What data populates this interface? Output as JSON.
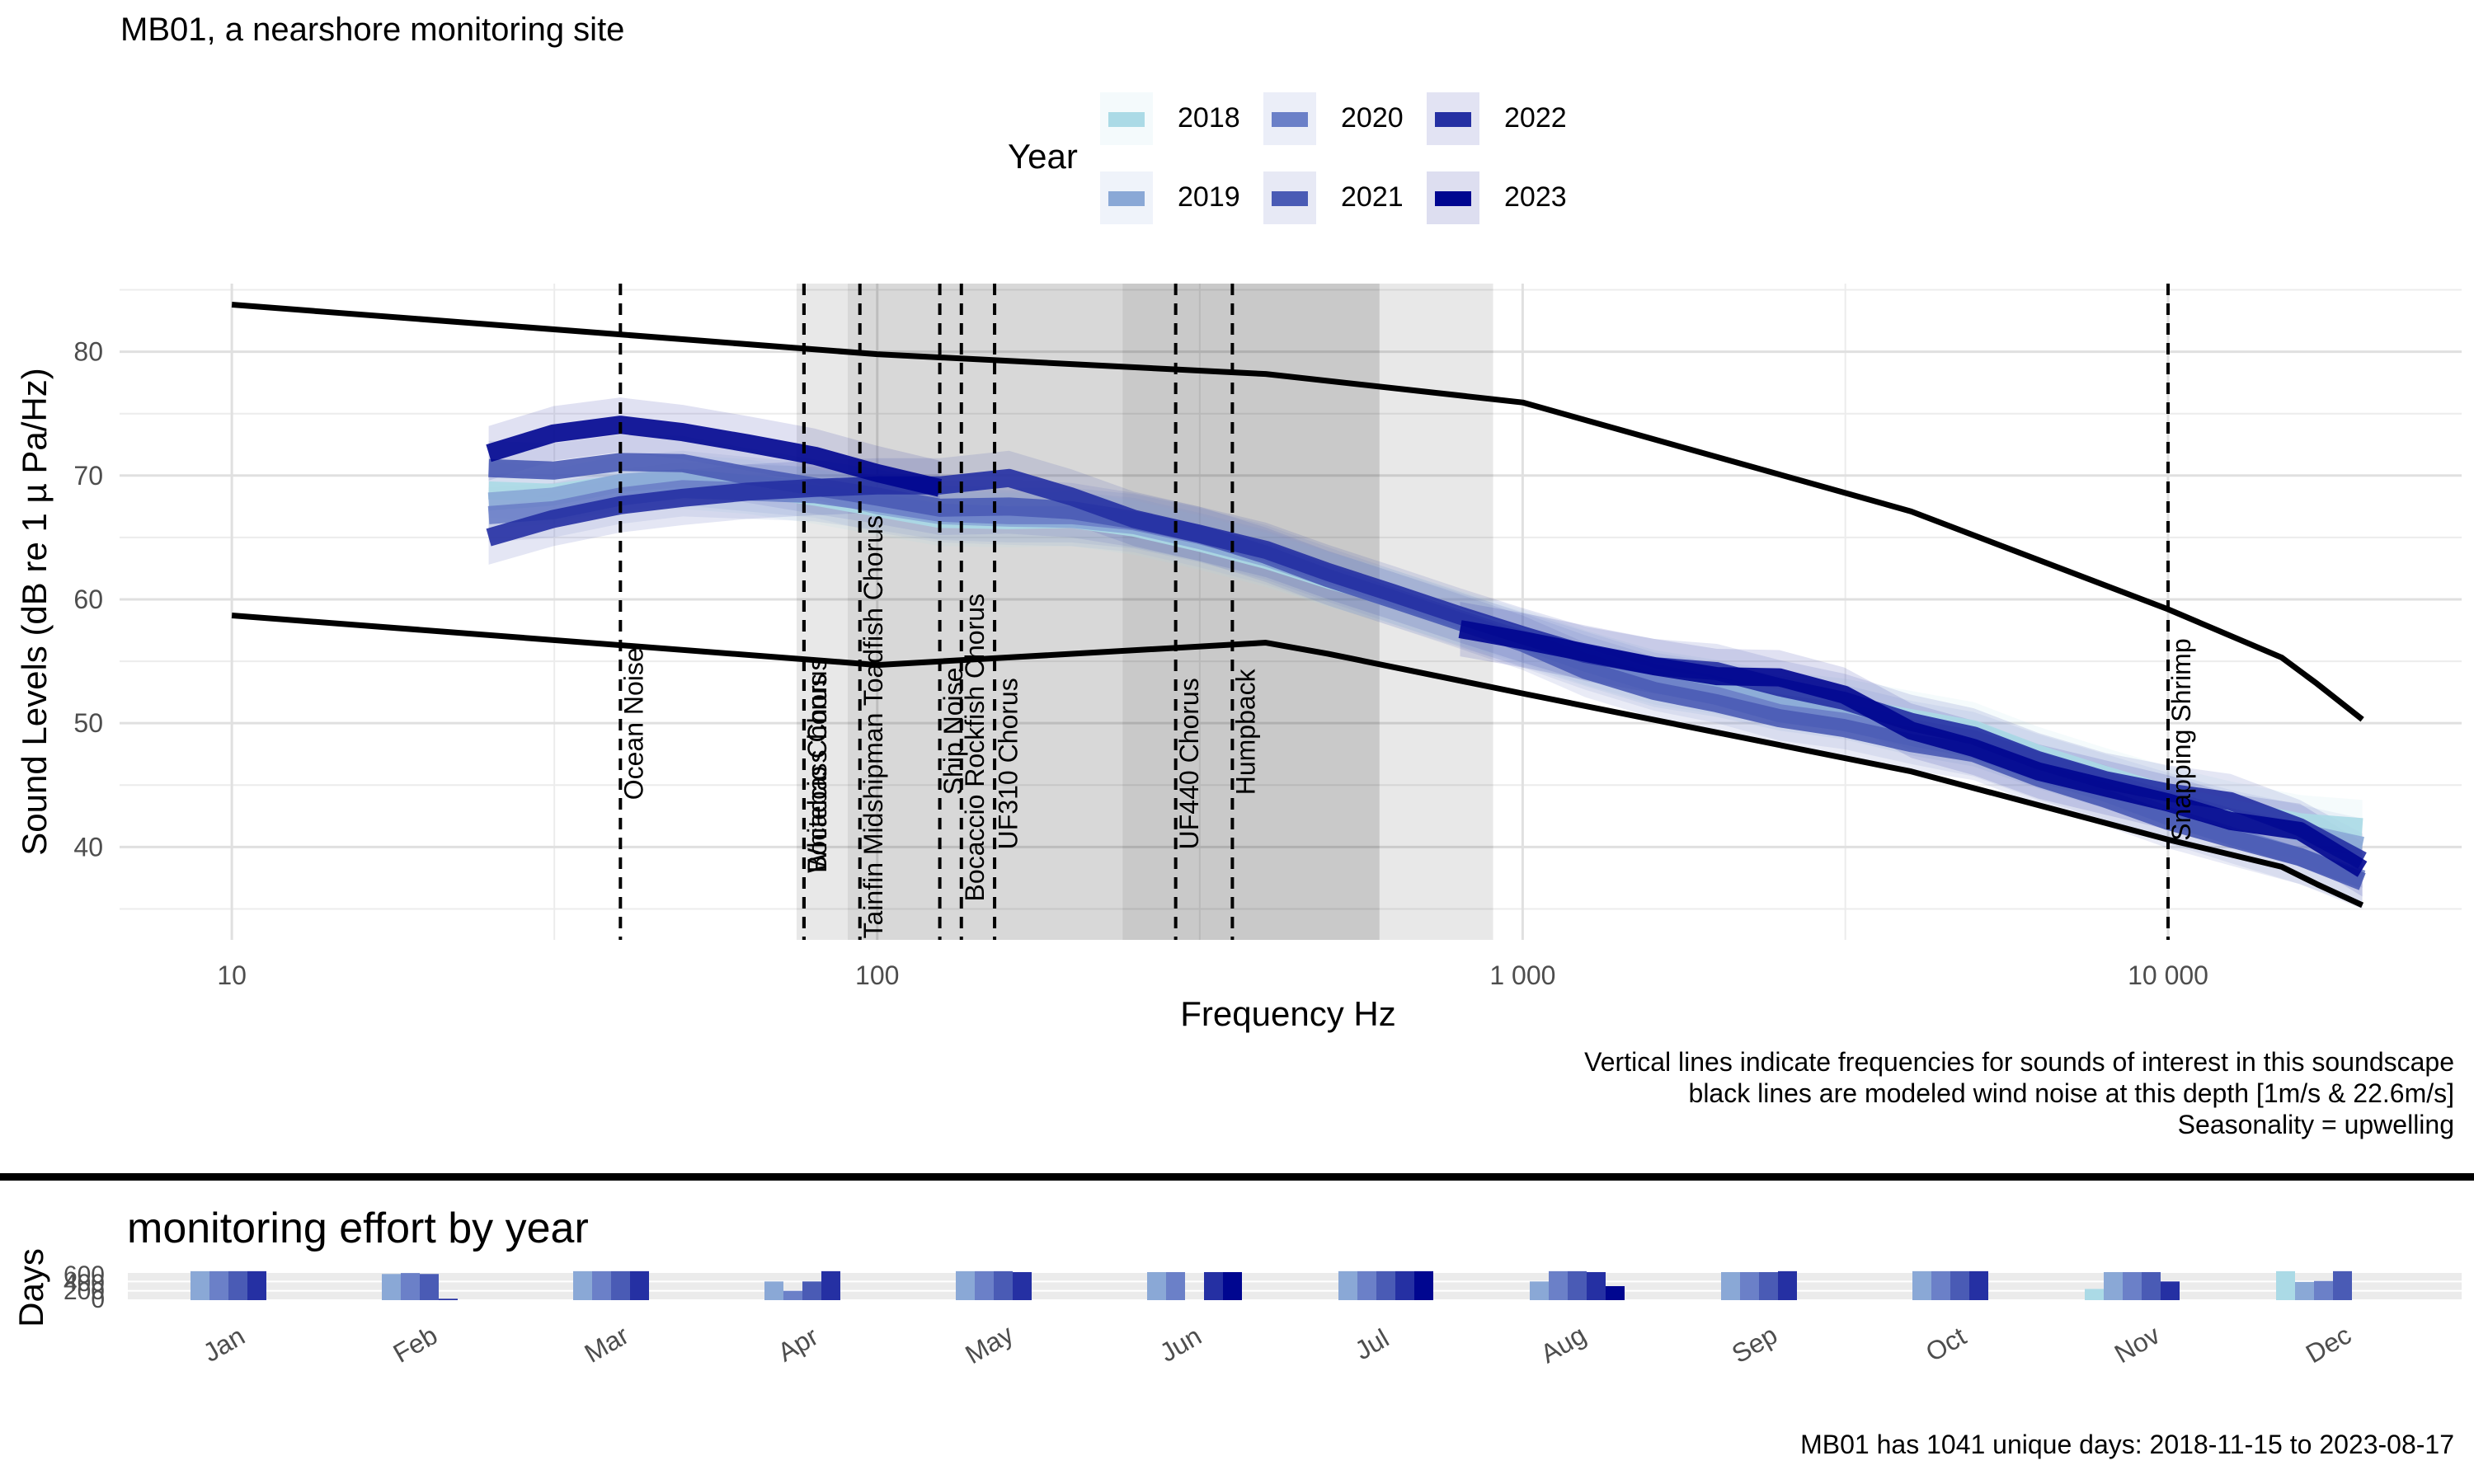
{
  "page_title": "MB01, a nearshore monitoring site",
  "legend": {
    "title": "Year",
    "items": [
      {
        "label": "2018",
        "color": "#abdae6"
      },
      {
        "label": "2019",
        "color": "#8aa8d6"
      },
      {
        "label": "2020",
        "color": "#6b80c8"
      },
      {
        "label": "2021",
        "color": "#4a5bb5"
      },
      {
        "label": "2022",
        "color": "#2530a3"
      },
      {
        "label": "2023",
        "color": "#000690"
      }
    ]
  },
  "notes": [
    "Vertical lines indicate frequencies for sounds of interest in this soundscape",
    "black lines are modeled wind noise at this depth [1m/s & 22.6m/s]",
    "Seasonality = upwelling"
  ],
  "effort_title": "monitoring effort by year",
  "footer": "MB01 has 1041 unique days: 2018-11-15 to 2023-08-17",
  "chart_data": [
    {
      "type": "line",
      "xlabel": "Frequency Hz",
      "ylabel": "Sound Levels (dB re 1 µ Pa/Hz)",
      "x_scale": "log",
      "xlim": [
        6.7,
        28500
      ],
      "ylim": [
        32.5,
        85.5
      ],
      "x_ticks": [
        10,
        100,
        1000,
        10000
      ],
      "x_tick_labels": [
        "10",
        "100",
        "1 000",
        "10 000"
      ],
      "y_ticks": [
        40,
        50,
        60,
        70,
        80
      ],
      "y_tick_labels": [
        "40",
        "50",
        "60",
        "70",
        "80"
      ],
      "grid": true,
      "legend_position": "top",
      "shaded_bands": [
        {
          "from": 75,
          "to": 900,
          "shade": "light"
        },
        {
          "from": 90,
          "to": 600,
          "shade": "medium"
        },
        {
          "from": 240,
          "to": 600,
          "shade": "medium"
        }
      ],
      "reference_lines": [
        {
          "label": "Ocean Noise",
          "x": 40,
          "label_y": 43.8
        },
        {
          "label": "Whitebass Chorus",
          "x": 77,
          "label_y": 37.9
        },
        {
          "label": "Bocaccio Chorus",
          "x": 77,
          "label_y": 37.9
        },
        {
          "label": "Tainfin Midshipman Toadfish Chorus",
          "x": 94,
          "label_y": 32.6
        },
        {
          "label": "Ship Noise",
          "x": 125,
          "label_y": 44.2
        },
        {
          "label": "Bocaccio Rockfish Chorus",
          "x": 135,
          "label_y": 35.6
        },
        {
          "label": "UF310 Chorus",
          "x": 152,
          "label_y": 39.8
        },
        {
          "label": "UF440 Chorus",
          "x": 290,
          "label_y": 39.8
        },
        {
          "label": "Humpback",
          "x": 355,
          "label_y": 44.2
        },
        {
          "label": "Snapping Shrimp",
          "x": 10000,
          "label_y": 40.5
        }
      ],
      "wind_noise": [
        {
          "name": "22.6m/s",
          "x": [
            10,
            100,
            400,
            1000,
            4000,
            10000,
            15000,
            17000,
            20000
          ],
          "y": [
            83.8,
            79.8,
            78.2,
            75.9,
            67.1,
            59.2,
            55.3,
            53.2,
            50.3
          ]
        },
        {
          "name": "1m/s",
          "x": [
            10,
            80,
            100,
            400,
            500,
            1000,
            4000,
            10000,
            15000,
            17000,
            20000
          ],
          "y": [
            58.7,
            55.1,
            54.7,
            56.5,
            55.6,
            52.4,
            46.1,
            40.6,
            38.4,
            37.0,
            35.3
          ]
        }
      ],
      "x": [
        25,
        31.5,
        40,
        50,
        63,
        80,
        100,
        125,
        160,
        200,
        250,
        315,
        400,
        500,
        630,
        800,
        1000,
        1250,
        1600,
        2000,
        2500,
        3150,
        4000,
        5000,
        6300,
        8000,
        10000,
        12500,
        16000,
        20000
      ],
      "series": [
        {
          "name": "2018",
          "values": [
            68.8,
            68.6,
            69.3,
            69.5,
            69.1,
            68.3,
            67.4,
            66.5,
            66.4,
            66.5,
            65.8,
            64.6,
            63.2,
            61.6,
            60.2,
            58.5,
            57.0,
            55.3,
            53.7,
            52.9,
            52.0,
            51.4,
            50.4,
            49.5,
            47.5,
            45.8,
            44.3,
            43.1,
            42.0,
            41.6
          ]
        },
        {
          "name": "2019",
          "values": [
            67.9,
            68.3,
            69.4,
            69.8,
            69.3,
            68.8,
            67.6,
            66.8,
            66.6,
            66.5,
            66.0,
            64.8,
            63.4,
            61.7,
            60.0,
            58.3,
            56.8,
            55.2,
            53.5,
            52.7,
            51.6,
            50.9,
            49.6,
            48.7,
            46.9,
            45.3,
            43.8,
            42.4,
            41.2,
            40.1
          ]
        },
        {
          "name": "2020",
          "values": [
            66.8,
            67.2,
            68.3,
            68.9,
            68.7,
            68.5,
            67.8,
            67.0,
            66.8,
            66.8,
            66.3,
            65.2,
            63.8,
            62.0,
            60.2,
            58.4,
            56.7,
            54.9,
            53.2,
            52.2,
            50.8,
            50.1,
            48.9,
            47.9,
            46.0,
            44.4,
            42.5,
            40.9,
            39.2,
            37.4
          ]
        },
        {
          "name": "2021",
          "values": [
            70.6,
            70.4,
            71.1,
            71.0,
            70.0,
            69.1,
            68.3,
            67.4,
            67.5,
            67.2,
            66.4,
            65.3,
            63.6,
            61.7,
            60.0,
            58.2,
            56.5,
            54.3,
            52.6,
            51.6,
            50.4,
            49.6,
            48.4,
            47.6,
            45.6,
            43.9,
            42.1,
            40.7,
            39.2,
            37.2
          ]
        },
        {
          "name": "2022",
          "values": [
            65.0,
            66.5,
            67.6,
            68.2,
            68.7,
            69.0,
            69.2,
            69.2,
            69.8,
            68.3,
            66.5,
            65.3,
            64.0,
            62.2,
            60.5,
            58.7,
            57.1,
            55.6,
            54.6,
            54.2,
            52.9,
            51.8,
            50.1,
            49.0,
            47.0,
            45.4,
            44.4,
            43.7,
            41.6,
            38.9
          ]
        },
        {
          "name": "2023",
          "values": [
            71.8,
            73.4,
            74.1,
            73.5,
            72.6,
            71.6,
            70.2,
            69.0,
            null,
            null,
            null,
            null,
            null,
            null,
            null,
            57.6,
            56.7,
            55.7,
            54.6,
            53.8,
            53.7,
            52.3,
            49.4,
            48.0,
            46.1,
            44.8,
            43.6,
            42.1,
            41.3,
            38.2
          ]
        }
      ]
    },
    {
      "type": "bar",
      "title": "monitoring effort by year",
      "ylabel": "Days",
      "y_tick_labels": [
        "600",
        "400",
        "200",
        "0"
      ],
      "ylim": [
        0,
        600
      ],
      "categories": [
        "Jan",
        "Feb",
        "Mar",
        "Apr",
        "May",
        "Jun",
        "Jul",
        "Aug",
        "Sep",
        "Oct",
        "Nov",
        "Dec"
      ],
      "series": [
        {
          "name": "2018",
          "values": [
            0,
            0,
            0,
            0,
            0,
            0,
            0,
            0,
            0,
            0,
            240,
            620
          ]
        },
        {
          "name": "2019",
          "values": [
            620,
            560,
            620,
            400,
            620,
            600,
            620,
            400,
            600,
            620,
            600,
            390
          ]
        },
        {
          "name": "2020",
          "values": [
            620,
            580,
            620,
            200,
            620,
            600,
            620,
            620,
            600,
            620,
            600,
            410
          ]
        },
        {
          "name": "2021",
          "values": [
            620,
            560,
            620,
            400,
            620,
            0,
            620,
            620,
            600,
            620,
            600,
            620
          ]
        },
        {
          "name": "2022",
          "values": [
            620,
            30,
            620,
            620,
            600,
            600,
            620,
            600,
            620,
            620,
            400,
            0
          ]
        },
        {
          "name": "2023",
          "values": [
            0,
            0,
            0,
            0,
            0,
            600,
            620,
            300,
            0,
            0,
            0,
            0
          ]
        }
      ]
    }
  ]
}
